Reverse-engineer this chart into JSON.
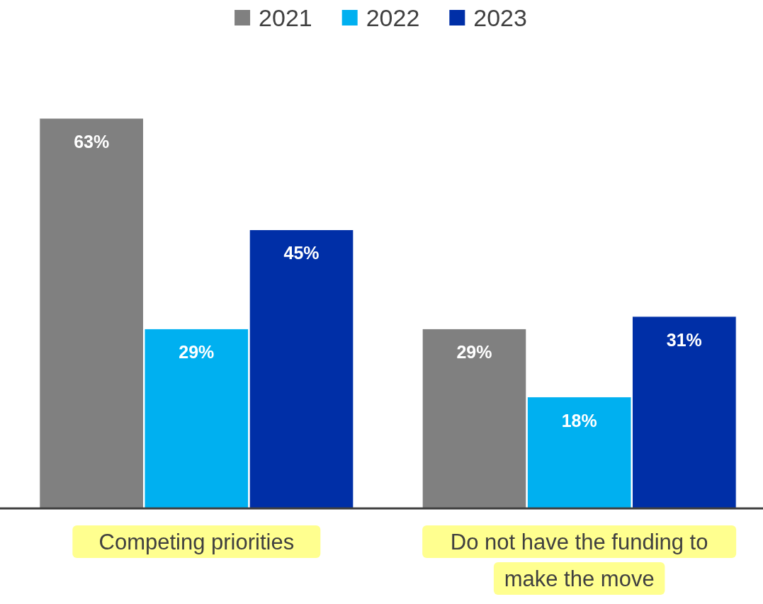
{
  "chart_data": {
    "type": "bar",
    "categories": [
      "Competing priorities",
      "Do not have the funding to make the move"
    ],
    "series": [
      {
        "name": "2021",
        "color": "#808080",
        "values": [
          63,
          29
        ],
        "value_labels": [
          "63%",
          "29%"
        ]
      },
      {
        "name": "2022",
        "color": "#00b0f0",
        "values": [
          29,
          18
        ],
        "value_labels": [
          "29%",
          "18%"
        ]
      },
      {
        "name": "2023",
        "color": "#002fa7",
        "values": [
          45,
          31
        ],
        "value_labels": [
          "45%",
          "31%"
        ]
      }
    ],
    "tick_labels": "x",
    "legend": "top"
  }
}
